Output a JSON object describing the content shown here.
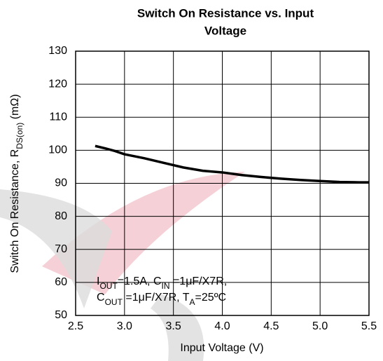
{
  "chart_data": {
    "type": "line",
    "title": [
      "Switch On Resistance vs. Input",
      "Voltage"
    ],
    "x_label": "Input Voltage (V)",
    "y_label": [
      "Switch On Resistance, R",
      "DS(on)",
      " (mΩ)"
    ],
    "annotation": [
      [
        "I",
        "OUT",
        "=1.5A, C",
        "IN",
        " =1μF/X7R,"
      ],
      [
        "C",
        "OUT",
        " =1μF/X7R, T",
        "A",
        "=25ºC"
      ]
    ],
    "x": [
      2.7,
      2.8,
      2.9,
      3.0,
      3.2,
      3.4,
      3.6,
      3.8,
      4.0,
      4.2,
      4.4,
      4.6,
      4.8,
      5.0,
      5.2,
      5.4,
      5.5
    ],
    "values": [
      101.3,
      100.6,
      99.8,
      98.8,
      97.6,
      96.2,
      94.8,
      93.8,
      93.3,
      92.5,
      91.9,
      91.4,
      91.0,
      90.7,
      90.4,
      90.3,
      90.3
    ],
    "color": "#000000",
    "xlim": [
      2.5,
      5.5
    ],
    "xticks": [
      2.5,
      {
        "value": 3,
        "label": "3.0"
      },
      3.5,
      {
        "value": 4,
        "label": "4.0"
      },
      4.5,
      {
        "value": 5,
        "label": "5.0"
      },
      5.5
    ],
    "ylim": [
      50,
      130
    ],
    "yticks": [
      50,
      60,
      70,
      80,
      90,
      100,
      110,
      120,
      130
    ],
    "grid": true
  }
}
